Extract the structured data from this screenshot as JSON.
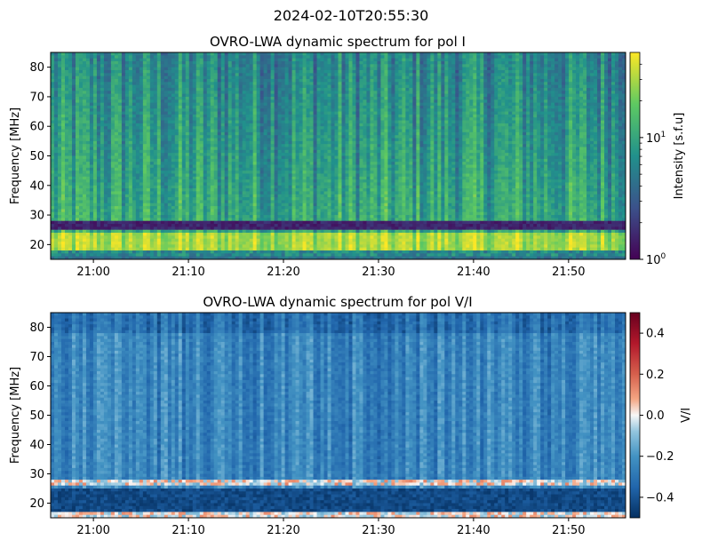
{
  "figure": {
    "suptitle": "2024-02-10T20:55:30"
  },
  "chart_data": [
    {
      "type": "heatmap",
      "title": "OVRO-LWA dynamic spectrum for pol I",
      "xlabel": "",
      "ylabel": "Frequency [MHz]",
      "x_ticks": [
        "21:00",
        "21:10",
        "21:20",
        "21:30",
        "21:40",
        "21:50"
      ],
      "x_tick_minutes": [
        0,
        10,
        20,
        30,
        40,
        50
      ],
      "x_range_minutes": [
        -4.5,
        56.0
      ],
      "x_reference_time": "21:00",
      "y_ticks": [
        20,
        30,
        40,
        50,
        60,
        70,
        80
      ],
      "ylim": [
        15,
        85
      ],
      "colorbar": {
        "label": "Intensity [s.f.u]",
        "scale": "log",
        "range": [
          1,
          50
        ],
        "major_ticks": [
          {
            "base": "10",
            "exp": "0",
            "value": 1
          },
          {
            "base": "10",
            "exp": "1",
            "value": 10
          }
        ],
        "colormap": "viridis"
      },
      "features": {
        "low_band_MHz": [
          25.5,
          28.0
        ],
        "bright_band_MHz": [
          18.5,
          24.0
        ],
        "thin_lines_MHz": [
          32.0
        ]
      }
    },
    {
      "type": "heatmap",
      "title": "OVRO-LWA dynamic spectrum for pol V/I",
      "xlabel": "",
      "ylabel": "Frequency [MHz]",
      "x_ticks": [
        "21:00",
        "21:10",
        "21:20",
        "21:30",
        "21:40",
        "21:50"
      ],
      "x_tick_minutes": [
        0,
        10,
        20,
        30,
        40,
        50
      ],
      "x_range_minutes": [
        -4.5,
        56.0
      ],
      "y_ticks": [
        20,
        30,
        40,
        50,
        60,
        70,
        80
      ],
      "ylim": [
        15,
        85
      ],
      "colorbar": {
        "label": "V/I",
        "scale": "linear",
        "range": [
          -0.5,
          0.5
        ],
        "ticks": [
          -0.4,
          -0.2,
          0.0,
          0.2,
          0.4
        ],
        "tick_labels": [
          "−0.4",
          "−0.2",
          "0.0",
          "0.2",
          "0.4"
        ],
        "colormap": "RdBu_r"
      },
      "features": {
        "typical_value": -0.25,
        "white_band_MHz": [
          26.0,
          28.0
        ],
        "dark_low_band_MHz": [
          18.5,
          24.5
        ]
      }
    }
  ]
}
